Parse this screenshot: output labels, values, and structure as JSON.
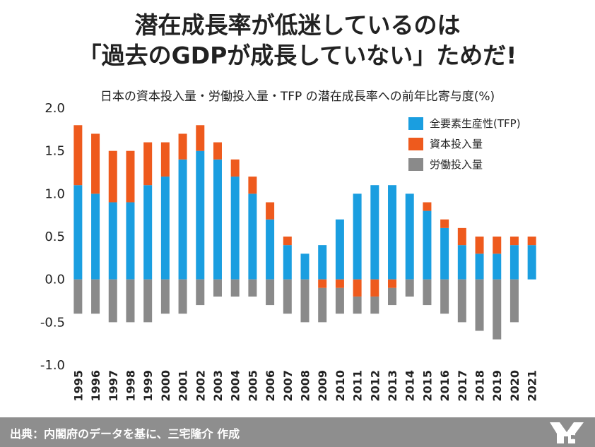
{
  "headline": {
    "line1": "潜在成長率が低迷しているのは",
    "line2": "「過去のGDPが成長していない」ためだ!"
  },
  "footer": {
    "source_text": "出典：内閣府のデータを基に、三宅隆介 作成"
  },
  "colors": {
    "tfp": "#1a9ee0",
    "capital": "#ee5a1d",
    "labor": "#8a8a8a",
    "footer_bg": "#8e8e8e"
  },
  "chart_data": {
    "type": "bar",
    "stacked": true,
    "title": "日本の資本投入量・労働投入量・TFP の潜在成長率への前年比寄与度(%)",
    "xlabel": "",
    "ylabel": "",
    "ylim": [
      -1.0,
      2.0
    ],
    "yticks": [
      "2.0",
      "1.5",
      "1.0",
      "0.5",
      "0.0",
      "-0.5",
      "-1.0"
    ],
    "ytick_values": [
      2.0,
      1.5,
      1.0,
      0.5,
      0.0,
      -0.5,
      -1.0
    ],
    "legend_position": "top-right",
    "grid": false,
    "categories": [
      "1995",
      "1996",
      "1997",
      "1998",
      "1999",
      "2000",
      "2001",
      "2002",
      "2003",
      "2004",
      "2005",
      "2006",
      "2007",
      "2008",
      "2009",
      "2010",
      "2011",
      "2012",
      "2013",
      "2014",
      "2015",
      "2016",
      "2017",
      "2018",
      "2019",
      "2020",
      "2021"
    ],
    "series": [
      {
        "name": "全要素生産性(TFP)",
        "key": "tfp",
        "values": [
          1.1,
          1.0,
          0.9,
          0.9,
          1.1,
          1.2,
          1.4,
          1.5,
          1.4,
          1.2,
          1.0,
          0.7,
          0.4,
          0.3,
          0.4,
          0.7,
          1.0,
          1.1,
          1.1,
          1.0,
          0.8,
          0.6,
          0.4,
          0.3,
          0.3,
          0.4,
          0.4
        ]
      },
      {
        "name": "資本投入量",
        "key": "capital",
        "values": [
          0.7,
          0.7,
          0.6,
          0.6,
          0.5,
          0.4,
          0.3,
          0.3,
          0.2,
          0.2,
          0.2,
          0.2,
          0.1,
          0.0,
          -0.1,
          -0.1,
          -0.2,
          -0.2,
          -0.1,
          0.0,
          0.1,
          0.1,
          0.2,
          0.2,
          0.2,
          0.1,
          0.1
        ]
      },
      {
        "name": "労働投入量",
        "key": "labor",
        "values": [
          -0.4,
          -0.4,
          -0.5,
          -0.5,
          -0.5,
          -0.4,
          -0.4,
          -0.3,
          -0.2,
          -0.2,
          -0.2,
          -0.3,
          -0.4,
          -0.5,
          -0.4,
          -0.3,
          -0.2,
          -0.2,
          -0.2,
          -0.2,
          -0.3,
          -0.4,
          -0.5,
          -0.6,
          -0.7,
          -0.5,
          0.0
        ]
      }
    ]
  }
}
